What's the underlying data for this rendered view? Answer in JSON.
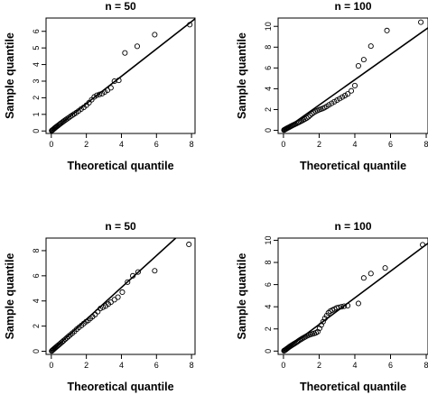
{
  "chart_data": [
    {
      "type": "scatter",
      "title": "n = 50",
      "xlabel": "Theoretical quantile",
      "ylabel": "Sample quantile",
      "xlim": [
        -0.3,
        8.2
      ],
      "ylim": [
        -0.15,
        6.8
      ],
      "xticks": [
        "0",
        "2",
        "4",
        "6",
        "8"
      ],
      "yticks": [
        "0",
        "1",
        "2",
        "3",
        "4",
        "5",
        "6"
      ],
      "reference_line": {
        "x": [
          0,
          8.2
        ],
        "y": [
          0,
          6.75
        ]
      },
      "points": [
        [
          0.02,
          0.02
        ],
        [
          0.05,
          0.04
        ],
        [
          0.08,
          0.07
        ],
        [
          0.12,
          0.1
        ],
        [
          0.16,
          0.14
        ],
        [
          0.2,
          0.18
        ],
        [
          0.25,
          0.22
        ],
        [
          0.3,
          0.26
        ],
        [
          0.35,
          0.3
        ],
        [
          0.41,
          0.35
        ],
        [
          0.47,
          0.4
        ],
        [
          0.53,
          0.45
        ],
        [
          0.6,
          0.5
        ],
        [
          0.67,
          0.56
        ],
        [
          0.75,
          0.62
        ],
        [
          0.83,
          0.68
        ],
        [
          0.91,
          0.74
        ],
        [
          1.0,
          0.8
        ],
        [
          1.1,
          0.88
        ],
        [
          1.2,
          0.95
        ],
        [
          1.3,
          1.02
        ],
        [
          1.42,
          1.1
        ],
        [
          1.55,
          1.2
        ],
        [
          1.7,
          1.32
        ],
        [
          1.85,
          1.42
        ],
        [
          2.0,
          1.55
        ],
        [
          2.15,
          1.7
        ],
        [
          2.3,
          1.88
        ],
        [
          2.45,
          2.05
        ],
        [
          2.6,
          2.15
        ],
        [
          2.75,
          2.2
        ],
        [
          2.9,
          2.25
        ],
        [
          3.05,
          2.35
        ],
        [
          3.2,
          2.45
        ],
        [
          3.4,
          2.6
        ],
        [
          3.6,
          3.0
        ],
        [
          3.85,
          3.05
        ],
        [
          4.2,
          4.7
        ],
        [
          4.9,
          5.1
        ],
        [
          5.9,
          5.8
        ],
        [
          7.9,
          6.4
        ]
      ]
    },
    {
      "type": "scatter",
      "title": "n = 100",
      "xlabel": "Theoretical quantile",
      "ylabel": "Sample quantile",
      "xlim": [
        -0.3,
        8.1
      ],
      "ylim": [
        -0.3,
        10.8
      ],
      "xticks": [
        "0",
        "2",
        "4",
        "6",
        "8"
      ],
      "yticks": [
        "0",
        "2",
        "4",
        "6",
        "8",
        "10"
      ],
      "reference_line": {
        "x": [
          0,
          8.3
        ],
        "y": [
          0,
          10.1
        ]
      },
      "points": [
        [
          0.03,
          0.03
        ],
        [
          0.06,
          0.06
        ],
        [
          0.1,
          0.1
        ],
        [
          0.14,
          0.14
        ],
        [
          0.18,
          0.18
        ],
        [
          0.22,
          0.22
        ],
        [
          0.27,
          0.26
        ],
        [
          0.32,
          0.3
        ],
        [
          0.37,
          0.35
        ],
        [
          0.42,
          0.4
        ],
        [
          0.48,
          0.45
        ],
        [
          0.54,
          0.5
        ],
        [
          0.6,
          0.55
        ],
        [
          0.66,
          0.6
        ],
        [
          0.73,
          0.66
        ],
        [
          0.8,
          0.72
        ],
        [
          0.87,
          0.78
        ],
        [
          0.95,
          0.85
        ],
        [
          1.03,
          0.92
        ],
        [
          1.12,
          1.0
        ],
        [
          1.2,
          1.08
        ],
        [
          1.3,
          1.18
        ],
        [
          1.4,
          1.3
        ],
        [
          1.5,
          1.45
        ],
        [
          1.6,
          1.6
        ],
        [
          1.7,
          1.72
        ],
        [
          1.8,
          1.82
        ],
        [
          1.9,
          1.9
        ],
        [
          2.0,
          1.98
        ],
        [
          2.1,
          2.04
        ],
        [
          2.2,
          2.1
        ],
        [
          2.3,
          2.18
        ],
        [
          2.42,
          2.3
        ],
        [
          2.55,
          2.45
        ],
        [
          2.7,
          2.6
        ],
        [
          2.85,
          2.75
        ],
        [
          3.0,
          2.9
        ],
        [
          3.15,
          3.05
        ],
        [
          3.3,
          3.2
        ],
        [
          3.45,
          3.35
        ],
        [
          3.6,
          3.5
        ],
        [
          3.8,
          3.8
        ],
        [
          4.0,
          4.3
        ],
        [
          4.2,
          6.2
        ],
        [
          4.5,
          6.8
        ],
        [
          4.9,
          8.1
        ],
        [
          5.8,
          9.6
        ],
        [
          7.7,
          10.4
        ]
      ]
    },
    {
      "type": "scatter",
      "title": "n = 50",
      "xlabel": "Theoretical quantile",
      "ylabel": "Sample quantile",
      "xlim": [
        -0.3,
        8.2
      ],
      "ylim": [
        -0.25,
        9.0
      ],
      "xticks": [
        "0",
        "2",
        "4",
        "6",
        "8"
      ],
      "yticks": [
        "0",
        "2",
        "4",
        "6",
        "8"
      ],
      "reference_line": {
        "x": [
          0,
          7.1
        ],
        "y": [
          0,
          9.0
        ]
      },
      "points": [
        [
          0.02,
          0.02
        ],
        [
          0.05,
          0.06
        ],
        [
          0.09,
          0.11
        ],
        [
          0.13,
          0.16
        ],
        [
          0.18,
          0.22
        ],
        [
          0.23,
          0.28
        ],
        [
          0.28,
          0.34
        ],
        [
          0.34,
          0.41
        ],
        [
          0.4,
          0.48
        ],
        [
          0.47,
          0.56
        ],
        [
          0.54,
          0.65
        ],
        [
          0.62,
          0.74
        ],
        [
          0.7,
          0.84
        ],
        [
          0.79,
          0.95
        ],
        [
          0.88,
          1.06
        ],
        [
          0.98,
          1.18
        ],
        [
          1.08,
          1.3
        ],
        [
          1.2,
          1.44
        ],
        [
          1.32,
          1.58
        ],
        [
          1.45,
          1.75
        ],
        [
          1.58,
          1.9
        ],
        [
          1.72,
          2.05
        ],
        [
          1.85,
          2.2
        ],
        [
          1.98,
          2.35
        ],
        [
          2.1,
          2.45
        ],
        [
          2.22,
          2.6
        ],
        [
          2.35,
          2.75
        ],
        [
          2.5,
          2.92
        ],
        [
          2.65,
          3.15
        ],
        [
          2.8,
          3.4
        ],
        [
          2.95,
          3.5
        ],
        [
          3.1,
          3.6
        ],
        [
          3.25,
          3.75
        ],
        [
          3.4,
          3.9
        ],
        [
          3.6,
          4.1
        ],
        [
          3.8,
          4.3
        ],
        [
          4.05,
          4.7
        ],
        [
          4.35,
          5.5
        ],
        [
          4.65,
          6.0
        ],
        [
          4.95,
          6.3
        ],
        [
          5.9,
          6.4
        ],
        [
          7.85,
          8.5
        ]
      ]
    },
    {
      "type": "scatter",
      "title": "n = 100",
      "xlabel": "Theoretical quantile",
      "ylabel": "Sample quantile",
      "xlim": [
        -0.3,
        8.1
      ],
      "ylim": [
        -0.3,
        10.2
      ],
      "xticks": [
        "0",
        "2",
        "4",
        "6",
        "8"
      ],
      "yticks": [
        "0",
        "2",
        "4",
        "6",
        "8",
        "10"
      ],
      "reference_line": {
        "x": [
          0,
          8.2
        ],
        "y": [
          0,
          9.85
        ]
      },
      "points": [
        [
          0.03,
          0.03
        ],
        [
          0.06,
          0.06
        ],
        [
          0.1,
          0.1
        ],
        [
          0.14,
          0.15
        ],
        [
          0.18,
          0.2
        ],
        [
          0.23,
          0.26
        ],
        [
          0.28,
          0.32
        ],
        [
          0.33,
          0.38
        ],
        [
          0.38,
          0.44
        ],
        [
          0.44,
          0.5
        ],
        [
          0.5,
          0.56
        ],
        [
          0.56,
          0.62
        ],
        [
          0.62,
          0.68
        ],
        [
          0.69,
          0.75
        ],
        [
          0.76,
          0.82
        ],
        [
          0.83,
          0.9
        ],
        [
          0.9,
          0.98
        ],
        [
          0.98,
          1.06
        ],
        [
          1.06,
          1.14
        ],
        [
          1.15,
          1.22
        ],
        [
          1.24,
          1.3
        ],
        [
          1.33,
          1.38
        ],
        [
          1.42,
          1.44
        ],
        [
          1.52,
          1.5
        ],
        [
          1.62,
          1.55
        ],
        [
          1.72,
          1.6
        ],
        [
          1.82,
          1.66
        ],
        [
          1.92,
          1.75
        ],
        [
          2.02,
          2.05
        ],
        [
          2.12,
          2.35
        ],
        [
          2.22,
          2.65
        ],
        [
          2.32,
          2.95
        ],
        [
          2.42,
          3.2
        ],
        [
          2.52,
          3.45
        ],
        [
          2.62,
          3.6
        ],
        [
          2.74,
          3.7
        ],
        [
          2.86,
          3.8
        ],
        [
          2.98,
          3.9
        ],
        [
          3.1,
          3.95
        ],
        [
          3.25,
          4.0
        ],
        [
          3.4,
          4.05
        ],
        [
          3.6,
          4.1
        ],
        [
          4.2,
          4.3
        ],
        [
          4.5,
          6.6
        ],
        [
          4.9,
          7.0
        ],
        [
          5.7,
          7.5
        ],
        [
          7.8,
          9.6
        ]
      ]
    }
  ]
}
